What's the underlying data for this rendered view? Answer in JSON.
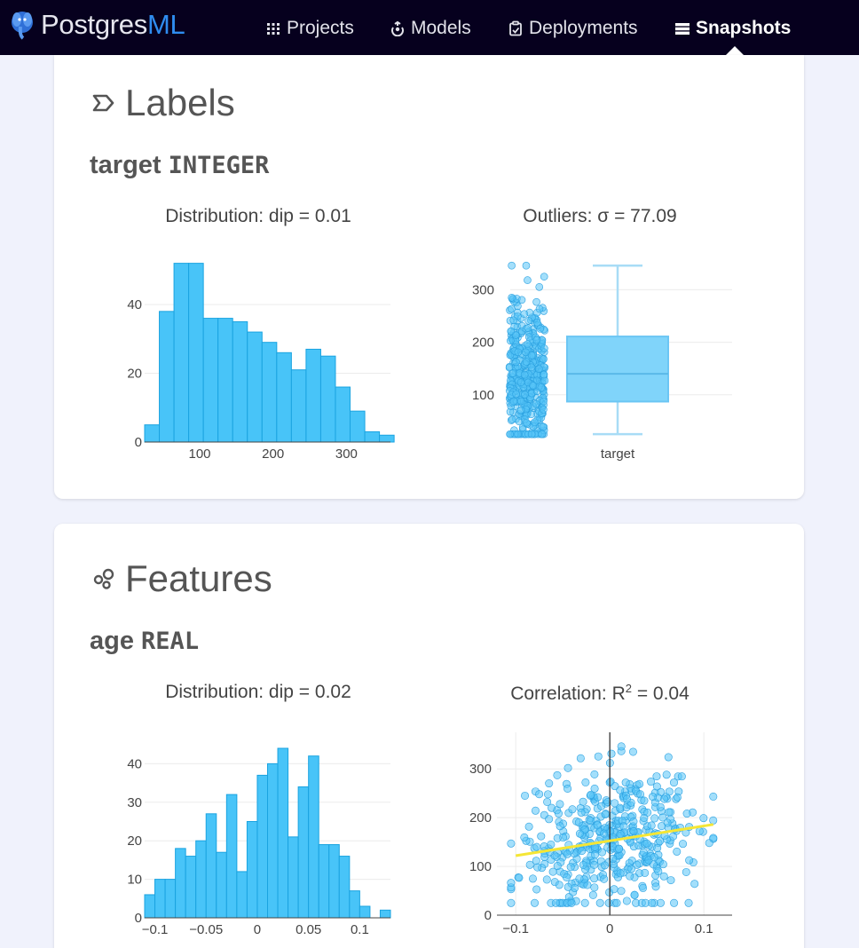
{
  "nav": {
    "brand_main": "Postgres",
    "brand_accent": "ML",
    "items": [
      {
        "label": "Projects",
        "icon": "grid-icon"
      },
      {
        "label": "Models",
        "icon": "model-icon"
      },
      {
        "label": "Deployments",
        "icon": "clipboard-icon"
      },
      {
        "label": "Snapshots",
        "icon": "table-icon",
        "active": true
      }
    ]
  },
  "labels_section": {
    "title": "Labels",
    "column_name": "target",
    "column_type": "INTEGER",
    "dist_title": "Distribution: dip = 0.01",
    "outlier_title": "Outliers: σ = 77.09"
  },
  "features_section": {
    "title": "Features",
    "column_name": "age",
    "column_type": "REAL",
    "dist_title": "Distribution: dip = 0.02",
    "corr_title_prefix": "Correlation: R",
    "corr_title_sup": "2",
    "corr_title_suffix": " = 0.04"
  },
  "colors": {
    "bar_fill": "#48c4f8",
    "bar_stroke": "#1aa3e0",
    "point": "#58c4f8",
    "trend": "#f5e635",
    "nav_bg": "#06001e",
    "accent": "#2f8cf0"
  },
  "chart_data": [
    {
      "type": "bar",
      "title": "Distribution: dip = 0.01",
      "x_start": 25,
      "bin_width": 20,
      "values": [
        5,
        38,
        52,
        52,
        36,
        36,
        35,
        32,
        29,
        26,
        21,
        27,
        25,
        16,
        9,
        3,
        2
      ],
      "x_ticks": [
        100,
        200,
        300
      ],
      "x_tick_labels": [
        "100",
        "200",
        "300"
      ],
      "y_ticks": [
        0,
        20,
        40
      ],
      "y_tick_labels": [
        "0",
        "20",
        "40"
      ],
      "xlim": [
        25,
        360
      ],
      "ylim": [
        0,
        55
      ]
    },
    {
      "type": "box",
      "title": "Outliers: σ = 77.09",
      "category": "target",
      "min": 25,
      "q1": 87,
      "median": 140,
      "q3": 211,
      "max": 346,
      "points_min": 25,
      "points_max": 346,
      "n_points": 442,
      "y_ticks": [
        100,
        200,
        300
      ],
      "y_tick_labels": [
        "100",
        "200",
        "300"
      ],
      "ylim": [
        10,
        370
      ]
    },
    {
      "type": "bar",
      "title": "Distribution: dip = 0.02",
      "x_start": -0.11,
      "bin_width": 0.01,
      "values": [
        6,
        10,
        10,
        18,
        16,
        20,
        27,
        17,
        32,
        12,
        25,
        37,
        40,
        44,
        21,
        34,
        42,
        19,
        19,
        16,
        7,
        3,
        0,
        2
      ],
      "x_ticks": [
        -0.1,
        -0.05,
        0,
        0.05,
        0.1
      ],
      "x_tick_labels": [
        "−0.1",
        "−0.05",
        "0",
        "0.05",
        "0.1"
      ],
      "y_ticks": [
        0,
        10,
        20,
        30,
        40
      ],
      "y_tick_labels": [
        "0",
        "10",
        "20",
        "30",
        "40"
      ],
      "xlim": [
        -0.11,
        0.13
      ],
      "ylim": [
        0,
        47
      ]
    },
    {
      "type": "scatter",
      "title": "Correlation: R² = 0.04",
      "n_points": 442,
      "x_range": [
        -0.105,
        0.11
      ],
      "y_range": [
        25,
        346
      ],
      "trend": {
        "x0": -0.1,
        "y0": 122,
        "x1": 0.11,
        "y1": 186
      },
      "x_ticks": [
        -0.1,
        0,
        0.1
      ],
      "x_tick_labels": [
        "−0.1",
        "0",
        "0.1"
      ],
      "y_ticks": [
        0,
        100,
        200,
        300
      ],
      "y_tick_labels": [
        "0",
        "100",
        "200",
        "300"
      ],
      "xlim": [
        -0.12,
        0.13
      ],
      "ylim": [
        0,
        375
      ]
    }
  ]
}
